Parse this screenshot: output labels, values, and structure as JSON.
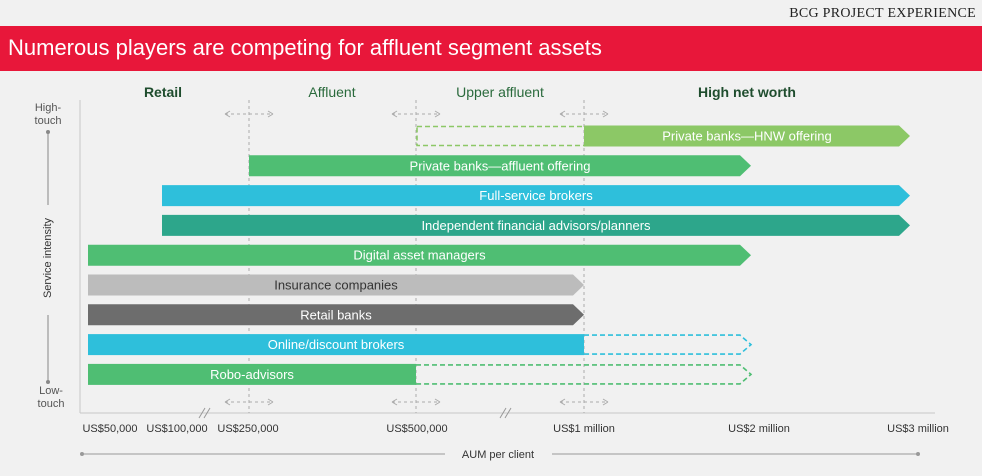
{
  "header": {
    "tag": "BCG PROJECT EXPERIENCE",
    "title": "Numerous players are competing for affluent segment assets"
  },
  "chart_data": {
    "type": "bar",
    "subtype": "horizontal-range",
    "title": "Numerous players are competing for affluent segment assets",
    "xlabel": "AUM per client",
    "ylabel": "Service intensity",
    "y_top_label": "High-touch",
    "y_bottom_label": "Low-touch",
    "x_ticks": [
      "US$50,000",
      "US$100,000",
      "US$250,000",
      "US$500,000",
      "US$1 million",
      "US$2 million",
      "US$3 million"
    ],
    "segments": [
      {
        "name": "Retail",
        "bold": true,
        "color": "#1f4d2e"
      },
      {
        "name": "Affluent",
        "bold": false,
        "color": "#2a6a3c"
      },
      {
        "name": "Upper affluent",
        "bold": false,
        "color": "#2a6a3c"
      },
      {
        "name": "High net worth",
        "bold": true,
        "color": "#1f4d2e"
      }
    ],
    "segment_boundaries": [
      "US$250,000",
      "US$500,000",
      "US$1 million"
    ],
    "series": [
      {
        "name": "Private banks—HNW offering",
        "from": "US$1 million",
        "to": "US$3 million",
        "color": "#8cc866",
        "dashed_from": "US$500,000"
      },
      {
        "name": "Private banks—affluent offering",
        "from": "US$250,000",
        "to": "US$2 million",
        "color": "#4fbe73"
      },
      {
        "name": "Full-service brokers",
        "from": "US$100,000",
        "to": "US$3 million",
        "color": "#2ebfdb"
      },
      {
        "name": "Independent financial advisors/planners",
        "from": "US$100,000",
        "to": "US$3 million",
        "color": "#2da68b"
      },
      {
        "name": "Digital asset managers",
        "from": "US$50,000",
        "to": "US$2 million",
        "color": "#4fbe73"
      },
      {
        "name": "Insurance companies",
        "from": "US$50,000",
        "to": "US$1 million",
        "color": "#bcbcbc",
        "text_color": "#333333"
      },
      {
        "name": "Retail banks",
        "from": "US$50,000",
        "to": "US$1 million",
        "color": "#6d6d6d"
      },
      {
        "name": "Online/discount brokers",
        "from": "US$50,000",
        "to": "US$1 million",
        "color": "#2ebfdb",
        "dashed_to": "US$2 million"
      },
      {
        "name": "Robo-advisors",
        "from": "US$50,000",
        "to": "US$500,000",
        "color": "#4fbe73",
        "dashed_to": "US$2 million"
      }
    ]
  }
}
